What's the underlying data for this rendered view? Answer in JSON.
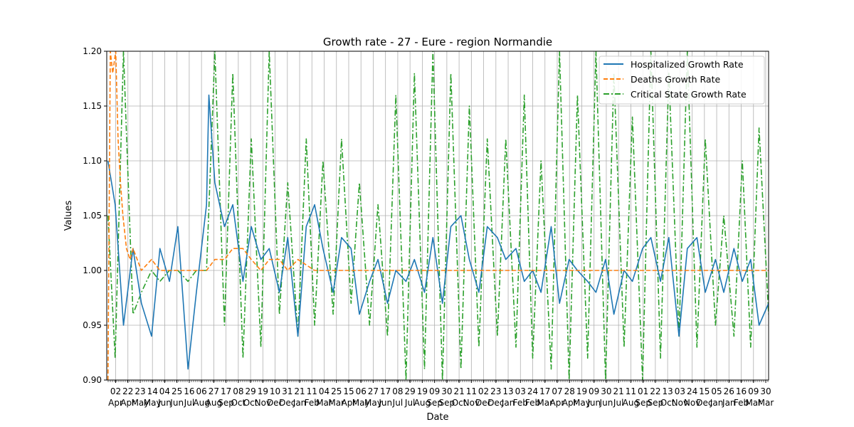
{
  "chart_data": {
    "type": "line",
    "title": "Growth rate - 27 - Eure - region Normandie",
    "xlabel": "Date",
    "ylabel": "Values",
    "ylim": [
      0.9,
      1.2
    ],
    "yticks": [
      "0.90",
      "0.95",
      "1.00",
      "1.05",
      "1.10",
      "1.15",
      "1.20"
    ],
    "grid": true,
    "legend_position": "top-right",
    "x_tick_days": [
      "02",
      "22",
      "23",
      "14",
      "04",
      "25",
      "16",
      "06",
      "27",
      "17",
      "08",
      "29",
      "19",
      "10",
      "31",
      "21",
      "11",
      "04",
      "25",
      "15",
      "06",
      "27",
      "17",
      "08",
      "29",
      "19",
      "09",
      "30",
      "21",
      "11",
      "02",
      "23",
      "13",
      "03",
      "24",
      "17",
      "07",
      "28",
      "19",
      "09",
      "30",
      "21",
      "11",
      "01",
      "22",
      "13",
      "03",
      "24",
      "15",
      "05",
      "26",
      "16",
      "09",
      "30"
    ],
    "x_tick_months": [
      "Apr",
      "Apr",
      "May",
      "May",
      "Jun",
      "Jun",
      "Jul",
      "Aug",
      "Aug",
      "Sep",
      "Oct",
      "Oct",
      "Nov",
      "Dec",
      "Dec",
      "Jan",
      "Feb",
      "Mar",
      "Mar",
      "Apr",
      "May",
      "May",
      "Jun",
      "Jul",
      "Jul",
      "Aug",
      "Sep",
      "Sep",
      "Oct",
      "Nov",
      "Dec",
      "Dec",
      "Jan",
      "Feb",
      "Feb",
      "Mar",
      "Apr",
      "Apr",
      "May",
      "Jun",
      "Jun",
      "Jul",
      "Aug",
      "Sep",
      "Sep",
      "Oct",
      "Nov",
      "Nov",
      "Dec",
      "Jan",
      "Jan",
      "Feb",
      "Mar",
      "Mar"
    ],
    "x_range": [
      "2020-03-18",
      "2023-03-31"
    ],
    "series": [
      {
        "name": "Hospitalized Growth Rate",
        "color": "#1f77b4",
        "style": "solid",
        "x": [
          "2020-03-20",
          "2020-04-01",
          "2020-04-15",
          "2020-05-01",
          "2020-05-15",
          "2020-06-01",
          "2020-06-15",
          "2020-07-01",
          "2020-07-15",
          "2020-08-01",
          "2020-08-15",
          "2020-09-01",
          "2020-09-05",
          "2020-09-15",
          "2020-10-01",
          "2020-10-15",
          "2020-11-01",
          "2020-11-15",
          "2020-12-01",
          "2020-12-15",
          "2021-01-01",
          "2021-01-15",
          "2021-02-01",
          "2021-02-15",
          "2021-03-01",
          "2021-03-15",
          "2021-04-01",
          "2021-04-15",
          "2021-05-01",
          "2021-05-15",
          "2021-06-01",
          "2021-06-15",
          "2021-07-01",
          "2021-07-15",
          "2021-08-01",
          "2021-08-15",
          "2021-09-01",
          "2021-09-15",
          "2021-10-01",
          "2021-10-15",
          "2021-11-01",
          "2021-11-15",
          "2021-12-01",
          "2021-12-15",
          "2022-01-01",
          "2022-01-15",
          "2022-02-01",
          "2022-02-15",
          "2022-03-01",
          "2022-03-15",
          "2022-04-01",
          "2022-04-15",
          "2022-05-01",
          "2022-05-15",
          "2022-06-01",
          "2022-06-15",
          "2022-07-01",
          "2022-07-15",
          "2022-08-01",
          "2022-08-15",
          "2022-09-01",
          "2022-09-15",
          "2022-10-01",
          "2022-10-15",
          "2022-11-01",
          "2022-11-15",
          "2022-12-01",
          "2022-12-15",
          "2023-01-01",
          "2023-01-15",
          "2023-02-01",
          "2023-02-15",
          "2023-03-01",
          "2023-03-15",
          "2023-03-31"
        ],
        "values": [
          1.1,
          1.06,
          0.95,
          1.02,
          0.97,
          0.94,
          1.02,
          0.99,
          1.04,
          0.91,
          0.98,
          1.06,
          1.16,
          1.08,
          1.04,
          1.06,
          0.99,
          1.04,
          1.01,
          1.02,
          0.98,
          1.03,
          0.94,
          1.04,
          1.06,
          1.02,
          0.98,
          1.03,
          1.02,
          0.96,
          0.99,
          1.01,
          0.97,
          1.0,
          0.99,
          1.01,
          0.98,
          1.03,
          0.97,
          1.04,
          1.05,
          1.01,
          0.98,
          1.04,
          1.03,
          1.01,
          1.02,
          0.99,
          1.0,
          0.98,
          1.04,
          0.97,
          1.01,
          1.0,
          0.99,
          0.98,
          1.01,
          0.96,
          1.0,
          0.99,
          1.02,
          1.03,
          0.99,
          1.03,
          0.94,
          1.02,
          1.03,
          0.98,
          1.01,
          0.98,
          1.02,
          0.99,
          1.01,
          0.95,
          0.97
        ]
      },
      {
        "name": "Deaths Growth Rate",
        "color": "#ff7f0e",
        "style": "dashed",
        "x": [
          "2020-03-20",
          "2020-03-24",
          "2020-03-28",
          "2020-04-02",
          "2020-04-06",
          "2020-04-10",
          "2020-04-14",
          "2020-04-20",
          "2020-04-26",
          "2020-05-01",
          "2020-05-08",
          "2020-05-15",
          "2020-06-01",
          "2020-06-15",
          "2020-07-01",
          "2020-07-15",
          "2020-08-01",
          "2020-08-15",
          "2020-09-01",
          "2020-09-15",
          "2020-10-01",
          "2020-10-15",
          "2020-11-01",
          "2020-11-15",
          "2020-12-01",
          "2020-12-15",
          "2021-01-01",
          "2021-01-15",
          "2021-02-01",
          "2021-03-01",
          "2021-04-01",
          "2021-05-01",
          "2021-06-01",
          "2021-07-01",
          "2021-08-01",
          "2021-09-01",
          "2022-01-01",
          "2022-06-01",
          "2022-12-01",
          "2023-03-31"
        ],
        "values": [
          0.9,
          1.2,
          1.18,
          1.2,
          1.12,
          1.08,
          1.05,
          1.02,
          1.01,
          1.02,
          1.01,
          1.0,
          1.01,
          1.0,
          1.0,
          1.0,
          1.0,
          1.0,
          1.0,
          1.01,
          1.01,
          1.02,
          1.02,
          1.01,
          1.0,
          1.01,
          1.01,
          1.0,
          1.01,
          1.0,
          1.0,
          1.0,
          1.0,
          1.0,
          1.0,
          1.0,
          1.0,
          1.0,
          1.0,
          1.0
        ]
      },
      {
        "name": "Critical State Growth Rate",
        "color": "#2ca02c",
        "style": "dashdot",
        "x": [
          "2020-03-20",
          "2020-04-01",
          "2020-04-15",
          "2020-05-01",
          "2020-05-15",
          "2020-06-01",
          "2020-06-15",
          "2020-07-01",
          "2020-07-15",
          "2020-08-01",
          "2020-08-15",
          "2020-09-01",
          "2020-09-15",
          "2020-10-01",
          "2020-10-15",
          "2020-11-01",
          "2020-11-15",
          "2020-12-01",
          "2020-12-15",
          "2021-01-01",
          "2021-01-15",
          "2021-02-01",
          "2021-02-15",
          "2021-03-01",
          "2021-03-15",
          "2021-04-01",
          "2021-04-15",
          "2021-05-01",
          "2021-05-15",
          "2021-06-01",
          "2021-06-15",
          "2021-07-01",
          "2021-07-15",
          "2021-08-01",
          "2021-08-15",
          "2021-09-01",
          "2021-09-15",
          "2021-10-01",
          "2021-10-15",
          "2021-11-01",
          "2021-11-15",
          "2021-12-01",
          "2021-12-15",
          "2022-01-01",
          "2022-01-15",
          "2022-02-01",
          "2022-02-15",
          "2022-03-01",
          "2022-03-15",
          "2022-04-01",
          "2022-04-15",
          "2022-05-01",
          "2022-05-15",
          "2022-06-01",
          "2022-06-15",
          "2022-07-01",
          "2022-07-15",
          "2022-08-01",
          "2022-08-15",
          "2022-09-01",
          "2022-09-15",
          "2022-10-01",
          "2022-10-15",
          "2022-11-01",
          "2022-11-15",
          "2022-12-01",
          "2022-12-15",
          "2023-01-01",
          "2023-01-15",
          "2023-02-01",
          "2023-02-15",
          "2023-03-01",
          "2023-03-15",
          "2023-03-31"
        ],
        "values": [
          1.05,
          0.92,
          1.2,
          0.96,
          0.98,
          1.0,
          0.99,
          1.0,
          1.0,
          0.99,
          1.0,
          1.0,
          1.2,
          0.95,
          1.18,
          0.92,
          1.12,
          0.93,
          1.2,
          0.96,
          1.08,
          0.94,
          1.12,
          0.95,
          1.1,
          0.96,
          1.12,
          0.97,
          1.08,
          0.95,
          1.06,
          0.94,
          1.16,
          0.9,
          1.18,
          0.91,
          1.2,
          0.9,
          1.18,
          0.91,
          1.15,
          0.93,
          1.12,
          0.94,
          1.12,
          0.93,
          1.16,
          0.92,
          1.1,
          0.91,
          1.2,
          0.9,
          1.16,
          0.92,
          1.2,
          0.9,
          1.18,
          0.93,
          1.14,
          0.9,
          1.2,
          0.92,
          1.18,
          0.94,
          1.2,
          0.93,
          1.12,
          0.95,
          1.05,
          0.94,
          1.1,
          0.93,
          1.13,
          0.96
        ]
      }
    ]
  }
}
